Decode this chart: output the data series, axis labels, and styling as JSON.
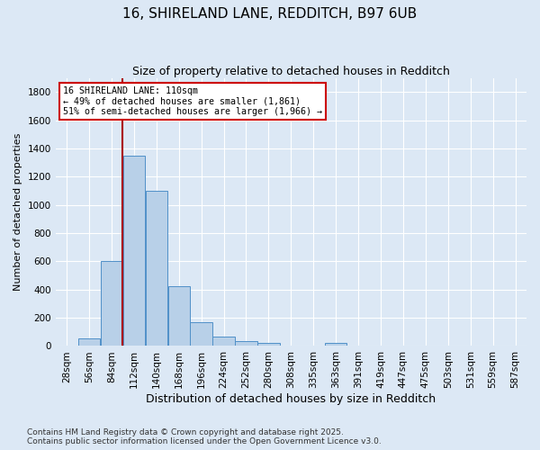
{
  "title1": "16, SHIRELAND LANE, REDDITCH, B97 6UB",
  "title2": "Size of property relative to detached houses in Redditch",
  "xlabel": "Distribution of detached houses by size in Redditch",
  "ylabel": "Number of detached properties",
  "footer1": "Contains HM Land Registry data © Crown copyright and database right 2025.",
  "footer2": "Contains public sector information licensed under the Open Government Licence v3.0.",
  "bin_labels": [
    "28sqm",
    "56sqm",
    "84sqm",
    "112sqm",
    "140sqm",
    "168sqm",
    "196sqm",
    "224sqm",
    "252sqm",
    "280sqm",
    "308sqm",
    "335sqm",
    "363sqm",
    "391sqm",
    "419sqm",
    "447sqm",
    "475sqm",
    "503sqm",
    "531sqm",
    "559sqm",
    "587sqm"
  ],
  "bar_values": [
    0,
    55,
    600,
    1350,
    1100,
    425,
    170,
    65,
    35,
    20,
    0,
    0,
    20,
    0,
    0,
    0,
    0,
    0,
    0,
    0,
    0
  ],
  "bar_color": "#b8d0e8",
  "bar_edge_color": "#5090c8",
  "annotation_title": "16 SHIRELAND LANE: 110sqm",
  "annotation_line1": "← 49% of detached houses are smaller (1,861)",
  "annotation_line2": "51% of semi-detached houses are larger (1,966) →",
  "annotation_box_color": "#ffffff",
  "annotation_box_edge": "#cc0000",
  "red_line_color": "#aa0000",
  "ylim": [
    0,
    1900
  ],
  "yticks": [
    0,
    200,
    400,
    600,
    800,
    1000,
    1200,
    1400,
    1600,
    1800
  ],
  "bg_color": "#dce8f5",
  "grid_color": "#ffffff",
  "title_fontsize": 11,
  "subtitle_fontsize": 9,
  "axis_label_fontsize": 9,
  "tick_fontsize": 7.5,
  "footer_fontsize": 6.5
}
